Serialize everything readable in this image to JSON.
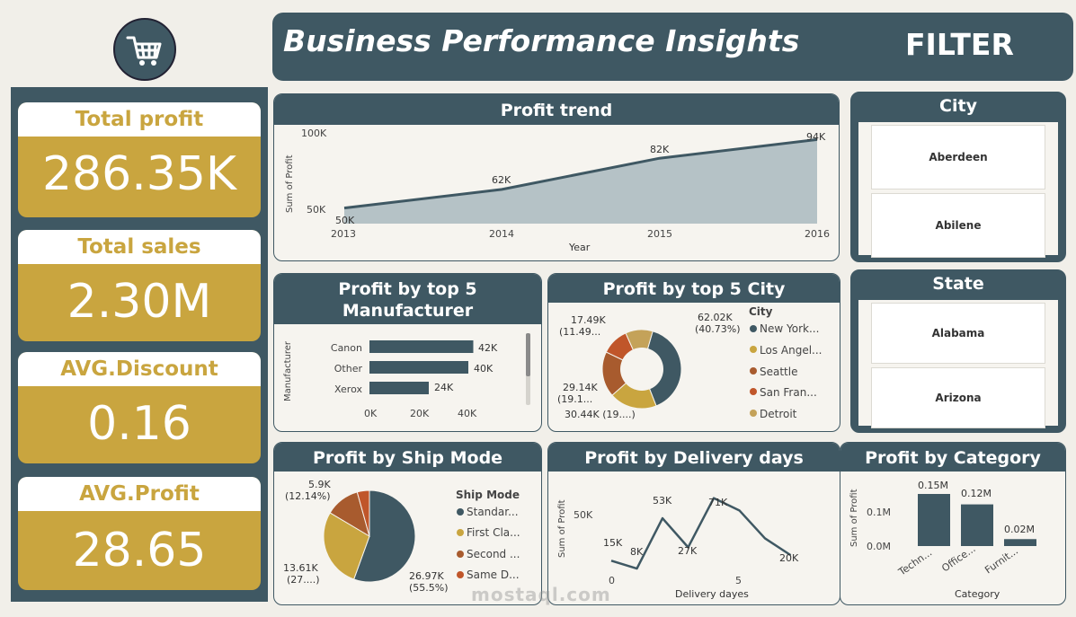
{
  "header": {
    "title": "Business Performance Insights",
    "filter_label": "FILTER"
  },
  "logo": {
    "icon": "shopping-cart-icon"
  },
  "kpis": [
    {
      "label": "Total profit",
      "value": "286.35K"
    },
    {
      "label": "Total sales",
      "value": "2.30M"
    },
    {
      "label": "AVG.Discount",
      "value": "0.16"
    },
    {
      "label": "AVG.Profit",
      "value": "28.65"
    }
  ],
  "profit_trend": {
    "title": "Profit trend",
    "ylabel": "Sum of Profit",
    "xlabel": "Year",
    "y_ticks": [
      "100K",
      "50K"
    ],
    "x_ticks": [
      "2013",
      "2014",
      "2015",
      "2016"
    ],
    "data_labels": [
      "50K",
      "62K",
      "82K",
      "94K"
    ]
  },
  "manufacturer": {
    "title_line1": "Profit by top 5",
    "title_line2": "Manufacturer",
    "ylabel": "Manufacturer",
    "categories": [
      "Canon",
      "Other",
      "Xerox"
    ],
    "labels": [
      "42K",
      "40K",
      "24K"
    ],
    "x_ticks": [
      "0K",
      "20K",
      "40K"
    ]
  },
  "city_chart": {
    "title": "Profit by top 5 City",
    "legend_title": "City",
    "legend": [
      "New York...",
      "Los Angel...",
      "Seattle",
      "San Fran...",
      "Detroit"
    ],
    "labels": {
      "a1": "62.02K",
      "a2": "(40.73%)",
      "b1": "17.49K",
      "b2": "(11.49...",
      "c1": "29.14K",
      "c2": "(19.1...",
      "d1": "30.44K (19....)"
    }
  },
  "ship_mode": {
    "title": "Profit by Ship Mode",
    "legend_title": "Ship Mode",
    "legend": [
      "Standar...",
      "First Cla...",
      "Second ...",
      "Same D..."
    ],
    "labels": {
      "a1": "5.9K",
      "a2": "(12.14%)",
      "b1": "13.61K",
      "b2": "(27....)",
      "c1": "26.97K",
      "c2": "(55.5%)"
    }
  },
  "delivery": {
    "title": "Profit by Delivery days",
    "ylabel": "Sum of Profit",
    "xlabel": "Delivery dayes",
    "y_tick": "50K",
    "x_ticks": [
      "0",
      "5"
    ],
    "labels": [
      "15K",
      "8K",
      "53K",
      "27K",
      "71K",
      "20K"
    ]
  },
  "category": {
    "title": "Profit by Category",
    "ylabel": "Sum of Profit",
    "xlabel": "Category",
    "y_ticks": [
      "0.1M",
      "0.0M"
    ],
    "categories": [
      "Techn...",
      "Office...",
      "Furnit..."
    ],
    "labels": [
      "0.15M",
      "0.12M",
      "0.02M"
    ]
  },
  "city_slicer": {
    "title": "City",
    "items": [
      "Aberdeen",
      "Abilene"
    ]
  },
  "state_slicer": {
    "title": "State",
    "items": [
      "Alabama",
      "Arizona"
    ]
  },
  "watermark": {
    "text": "mostaql.com"
  },
  "chart_data": [
    {
      "type": "area",
      "title": "Profit trend",
      "xlabel": "Year",
      "ylabel": "Sum of Profit",
      "x": [
        2013,
        2014,
        2015,
        2016
      ],
      "values": [
        50000,
        62000,
        82000,
        94000
      ]
    },
    {
      "type": "bar",
      "orientation": "horizontal",
      "title": "Profit by top 5 Manufacturer",
      "ylabel": "Manufacturer",
      "categories": [
        "Canon",
        "Other",
        "Xerox"
      ],
      "values": [
        42000,
        40000,
        24000
      ]
    },
    {
      "type": "pie",
      "variant": "donut",
      "title": "Profit by top 5 City",
      "legend_title": "City",
      "categories": [
        "New York...",
        "Los Angel...",
        "Seattle",
        "San Fran...",
        "Detroit"
      ],
      "values": [
        62020,
        30440,
        29140,
        17490,
        17490
      ]
    },
    {
      "type": "pie",
      "title": "Profit by Ship Mode",
      "legend_title": "Ship Mode",
      "categories": [
        "Standar...",
        "First Cla...",
        "Second ...",
        "Same D..."
      ],
      "values": [
        26970,
        13610,
        5900,
        2100
      ]
    },
    {
      "type": "line",
      "title": "Profit by Delivery days",
      "xlabel": "Delivery dayes",
      "ylabel": "Sum of Profit",
      "x": [
        0,
        1,
        2,
        3,
        4,
        5,
        6,
        7
      ],
      "values": [
        15000,
        8000,
        53000,
        27000,
        71000,
        60000,
        35000,
        20000
      ]
    },
    {
      "type": "bar",
      "title": "Profit by Category",
      "xlabel": "Category",
      "ylabel": "Sum of Profit",
      "categories": [
        "Techn...",
        "Office...",
        "Furnit..."
      ],
      "values": [
        0.15,
        0.12,
        0.02
      ]
    }
  ],
  "colors": {
    "teal": "#3f5863",
    "gold": "#c9a53f",
    "rust": "#a85b2e",
    "orange": "#c0562a",
    "tan": "#c4a259",
    "area": "#b5c2c6"
  }
}
